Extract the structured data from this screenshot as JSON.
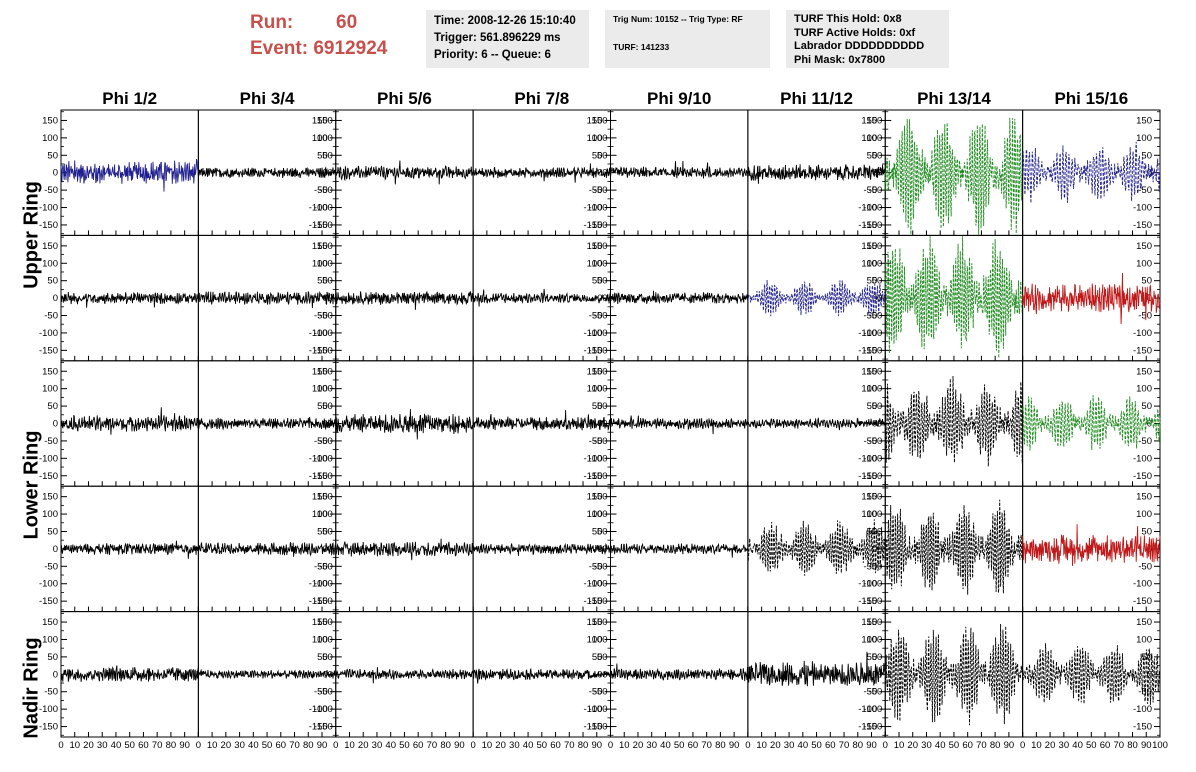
{
  "header": {
    "run_label": "Run:",
    "run_value": "60",
    "event_label": "Event:",
    "event_value": "6912924",
    "time": "Time: 2008-12-26 15:10:40",
    "trigger": "Trigger: 561.896229 ms",
    "priority": "Priority: 6 -- Queue: 6",
    "trig_num": "Trig Num: 10152 -- Trig Type: RF",
    "turf": "TURF: 141233",
    "turf_this_hold": "TURF This Hold: 0x8",
    "turf_active_holds": "TURF Active Holds: 0xf",
    "labrador": "Labrador DDDDDDDDDD",
    "phi_mask": "Phi Mask: 0x7800"
  },
  "rings": [
    "Upper Ring",
    "Lower Ring",
    "Nadir Ring"
  ],
  "chart_data": {
    "type": "line",
    "columns": [
      "Phi 1/2",
      "Phi 3/4",
      "Phi 5/6",
      "Phi 7/8",
      "Phi 9/10",
      "Phi 11/12",
      "Phi 13/14",
      "Phi 15/16"
    ],
    "xlim": [
      0,
      100
    ],
    "ylim": [
      -180,
      180
    ],
    "x_ticks": [
      0,
      10,
      20,
      30,
      40,
      50,
      60,
      70,
      80,
      90,
      100
    ],
    "y_ticks": [
      -150,
      -100,
      -50,
      0,
      50,
      100,
      150
    ],
    "colors": {
      "black": "#000000",
      "blue": "#1f1f8f",
      "green": "#1e8c1e",
      "red": "#c01818"
    },
    "rows": [
      [
        {
          "color": "blue",
          "amp": 32,
          "dashed": false
        },
        {
          "color": "black",
          "amp": 14,
          "dashed": false
        },
        {
          "color": "black",
          "amp": 18,
          "dashed": false
        },
        {
          "color": "black",
          "amp": 15,
          "dashed": false
        },
        {
          "color": "black",
          "amp": 16,
          "dashed": false
        },
        {
          "color": "black",
          "amp": 22,
          "dashed": false
        },
        {
          "color": "green",
          "amp": 150,
          "dashed": true
        },
        {
          "color": "blue",
          "amp": 75,
          "dashed": true
        }
      ],
      [
        {
          "color": "black",
          "amp": 16,
          "dashed": false
        },
        {
          "color": "black",
          "amp": 18,
          "dashed": false
        },
        {
          "color": "black",
          "amp": 18,
          "dashed": false
        },
        {
          "color": "black",
          "amp": 15,
          "dashed": false
        },
        {
          "color": "black",
          "amp": 16,
          "dashed": false
        },
        {
          "color": "blue",
          "amp": 45,
          "dashed": true
        },
        {
          "color": "green",
          "amp": 150,
          "dashed": true
        },
        {
          "color": "red",
          "amp": 42,
          "dashed": false
        }
      ],
      [
        {
          "color": "black",
          "amp": 22,
          "dashed": false
        },
        {
          "color": "black",
          "amp": 15,
          "dashed": false
        },
        {
          "color": "black",
          "amp": 28,
          "dashed": false
        },
        {
          "color": "black",
          "amp": 18,
          "dashed": false
        },
        {
          "color": "black",
          "amp": 15,
          "dashed": false
        },
        {
          "color": "black",
          "amp": 14,
          "dashed": false
        },
        {
          "color": "black",
          "amp": 110,
          "dashed": true
        },
        {
          "color": "green",
          "amp": 70,
          "dashed": true
        }
      ],
      [
        {
          "color": "black",
          "amp": 16,
          "dashed": false
        },
        {
          "color": "black",
          "amp": 18,
          "dashed": false
        },
        {
          "color": "black",
          "amp": 20,
          "dashed": false
        },
        {
          "color": "black",
          "amp": 15,
          "dashed": false
        },
        {
          "color": "black",
          "amp": 14,
          "dashed": false
        },
        {
          "color": "black",
          "amp": 70,
          "dashed": true
        },
        {
          "color": "black",
          "amp": 120,
          "dashed": true
        },
        {
          "color": "red",
          "amp": 40,
          "dashed": false
        }
      ],
      [
        {
          "color": "black",
          "amp": 20,
          "dashed": false
        },
        {
          "color": "black",
          "amp": 12,
          "dashed": false
        },
        {
          "color": "black",
          "amp": 14,
          "dashed": false
        },
        {
          "color": "black",
          "amp": 15,
          "dashed": false
        },
        {
          "color": "black",
          "amp": 16,
          "dashed": false
        },
        {
          "color": "black",
          "amp": 35,
          "dashed": false
        },
        {
          "color": "black",
          "amp": 120,
          "dashed": true
        },
        {
          "color": "black",
          "amp": 80,
          "dashed": true
        }
      ]
    ]
  }
}
